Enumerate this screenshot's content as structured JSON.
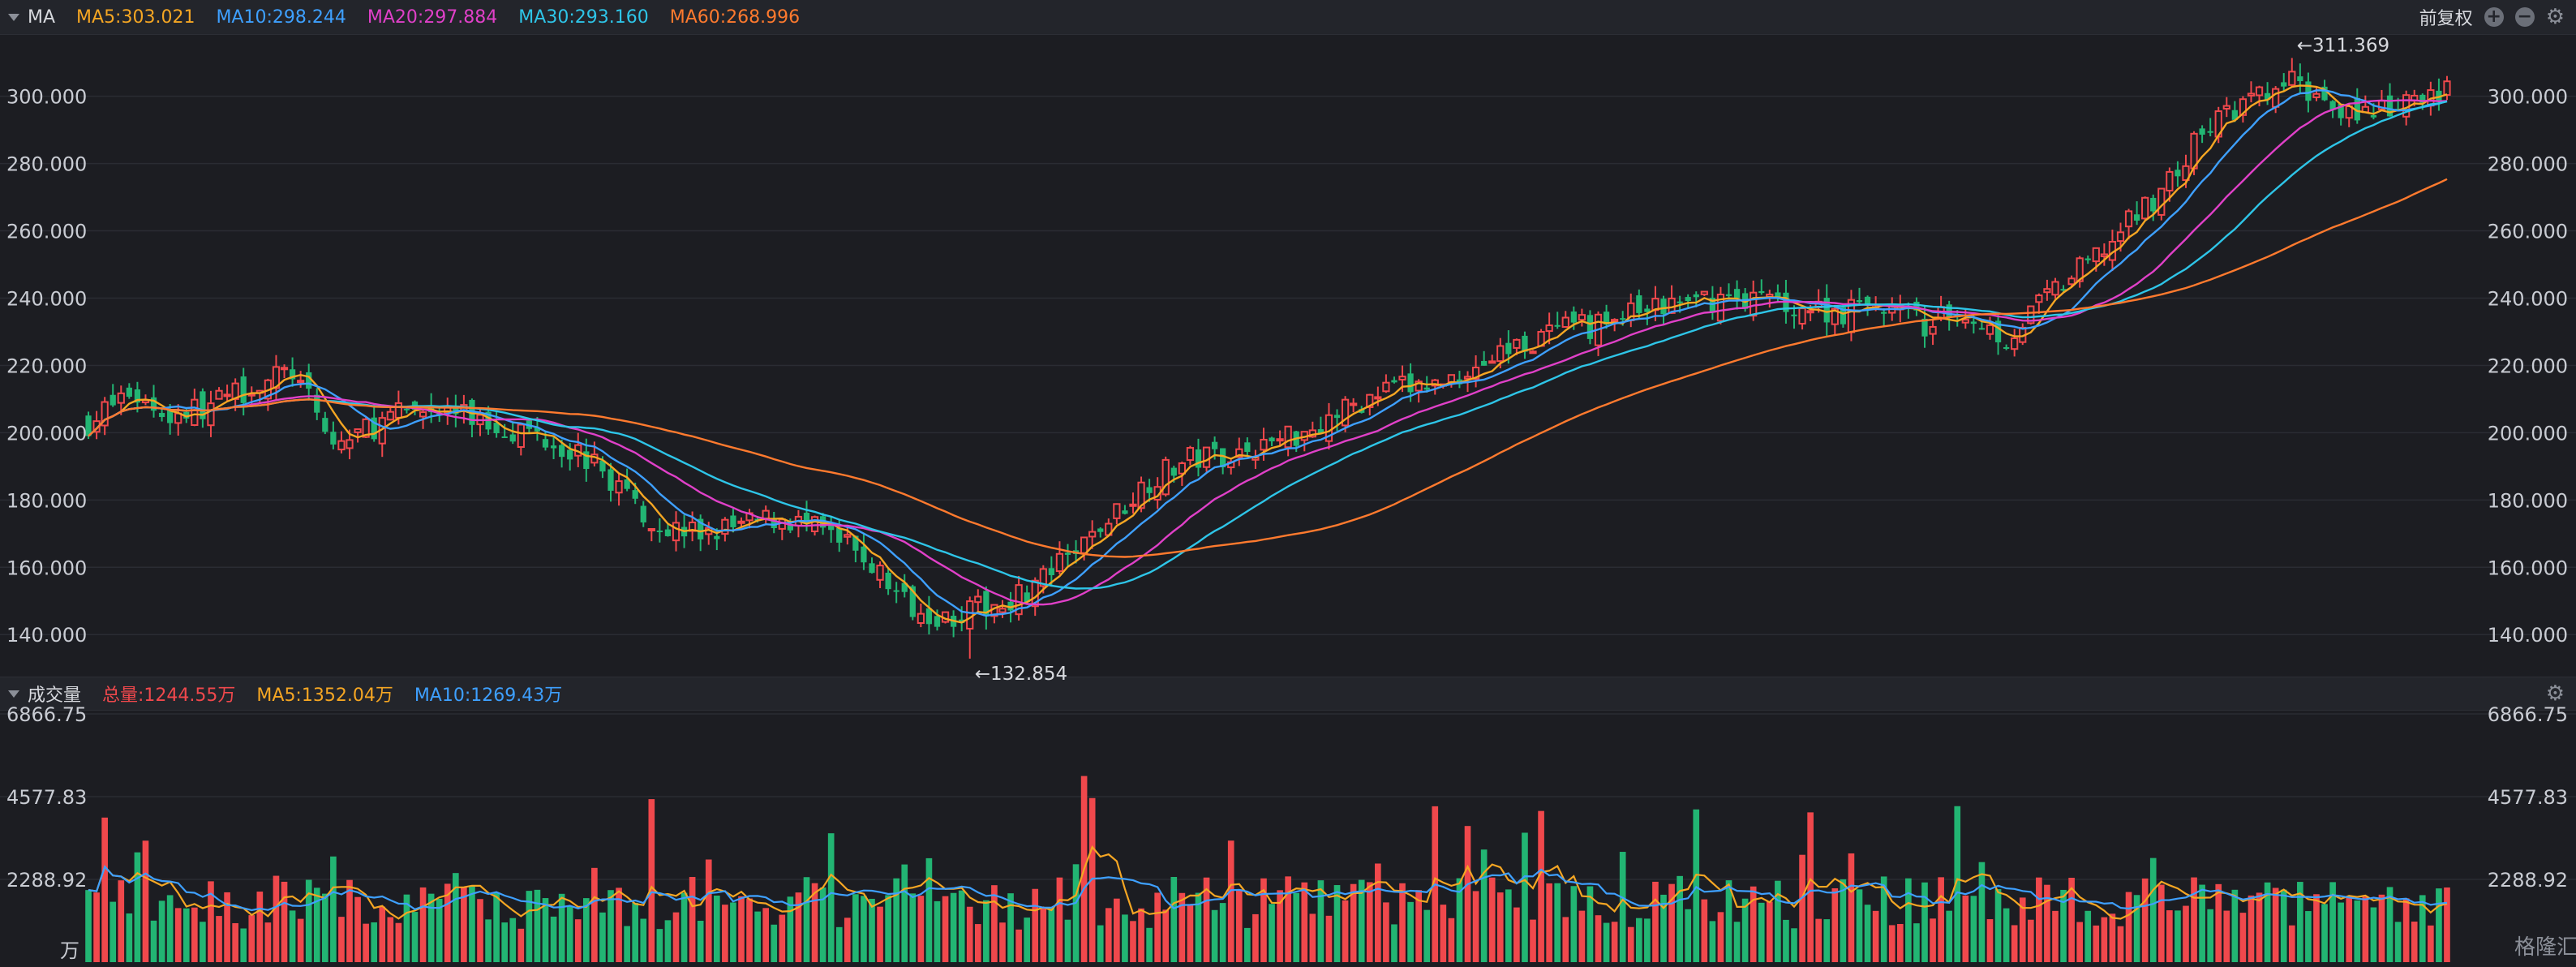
{
  "price_header": {
    "label": "MA",
    "items": [
      {
        "text": "MA5:303.021",
        "color": "#f5a623"
      },
      {
        "text": "MA10:298.244",
        "color": "#3ea0ff"
      },
      {
        "text": "MA20:297.884",
        "color": "#e040c8"
      },
      {
        "text": "MA30:293.160",
        "color": "#2ec5e8"
      },
      {
        "text": "MA60:268.996",
        "color": "#ff7a2e"
      }
    ],
    "adjust_label": "前复权"
  },
  "volume_header": {
    "label": "成交量",
    "items": [
      {
        "text": "总量:1244.55万",
        "color": "#f0484c"
      },
      {
        "text": "MA5:1352.04万",
        "color": "#f5a623"
      },
      {
        "text": "MA10:1269.43万",
        "color": "#3ea0ff"
      }
    ],
    "unit_label": "万"
  },
  "watermark": "格隆汇",
  "chart_data": [
    {
      "type": "candlestick",
      "y_ticks": [
        "300.000",
        "280.000",
        "260.000",
        "240.000",
        "220.000",
        "200.000",
        "180.000",
        "160.000",
        "140.000"
      ],
      "ylim": [
        128,
        318
      ],
      "annotations": [
        {
          "text": "←311.369",
          "value": 311.369
        },
        {
          "text": "←132.854",
          "value": 132.854
        }
      ],
      "series": {
        "close_keypoints": [
          [
            0,
            203
          ],
          [
            5,
            212
          ],
          [
            10,
            205
          ],
          [
            15,
            208
          ],
          [
            20,
            214
          ],
          [
            25,
            218
          ],
          [
            30,
            196
          ],
          [
            35,
            202
          ],
          [
            40,
            207
          ],
          [
            45,
            206
          ],
          [
            50,
            202
          ],
          [
            55,
            200
          ],
          [
            60,
            194
          ],
          [
            65,
            184
          ],
          [
            70,
            172
          ],
          [
            75,
            170
          ],
          [
            80,
            172
          ],
          [
            85,
            175
          ],
          [
            90,
            170
          ],
          [
            95,
            163
          ],
          [
            100,
            150
          ],
          [
            105,
            145
          ],
          [
            110,
            148
          ],
          [
            115,
            153
          ],
          [
            120,
            162
          ],
          [
            125,
            174
          ],
          [
            130,
            186
          ],
          [
            135,
            192
          ],
          [
            140,
            194
          ],
          [
            145,
            197
          ],
          [
            150,
            202
          ],
          [
            155,
            208
          ],
          [
            160,
            213
          ],
          [
            165,
            214
          ],
          [
            170,
            220
          ],
          [
            175,
            226
          ],
          [
            180,
            230
          ],
          [
            185,
            232
          ],
          [
            190,
            236
          ],
          [
            195,
            238
          ],
          [
            200,
            240
          ],
          [
            205,
            240
          ],
          [
            210,
            237
          ],
          [
            215,
            236
          ],
          [
            220,
            238
          ],
          [
            225,
            232
          ],
          [
            230,
            236
          ],
          [
            235,
            228
          ],
          [
            240,
            240
          ],
          [
            245,
            250
          ],
          [
            250,
            262
          ],
          [
            255,
            275
          ],
          [
            260,
            292
          ],
          [
            265,
            298
          ],
          [
            270,
            304
          ],
          [
            275,
            298
          ],
          [
            280,
            294
          ],
          [
            285,
            298
          ],
          [
            289,
            302
          ]
        ]
      }
    },
    {
      "type": "bar",
      "y_ticks": [
        "6866.75",
        "4577.83",
        "2288.92"
      ],
      "ylim": [
        0,
        6866.75
      ]
    }
  ]
}
